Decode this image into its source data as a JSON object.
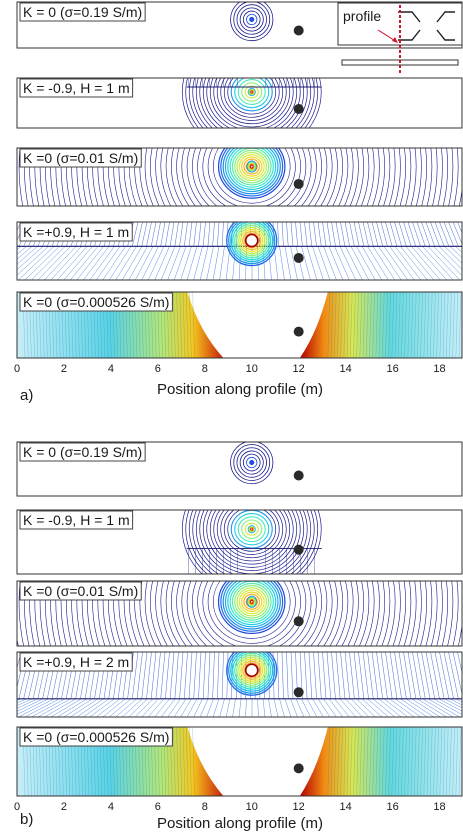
{
  "figure": {
    "xaxis_label": "Position along profile (m)",
    "x_ticks": [
      0,
      2,
      4,
      6,
      8,
      10,
      12,
      14,
      16,
      18
    ],
    "xlim": [
      0,
      19
    ],
    "inset_label": "profile",
    "colormap": [
      "#0a0a8c",
      "#1e50e6",
      "#1ea0f0",
      "#28e6dc",
      "#8cf07a",
      "#ebeb2d",
      "#f5a01e",
      "#e63214",
      "#a00000"
    ]
  },
  "groups": [
    {
      "tag": "a)",
      "panels": [
        {
          "label": "K = 0 (σ=0.19 S/m)",
          "kind": "small",
          "layer_m": null
        },
        {
          "label": "K = -0.9, H = 1 m",
          "kind": "negative",
          "layer_m": 1
        },
        {
          "label": "K =0 (σ=0.01 S/m)",
          "kind": "medium",
          "layer_m": null
        },
        {
          "label": "K =+0.9, H = 1 m",
          "kind": "positive",
          "layer_m": 1
        },
        {
          "label": "K =0 (σ=0.000526 S/m)",
          "kind": "wide",
          "layer_m": null
        }
      ]
    },
    {
      "tag": "b)",
      "panels": [
        {
          "label": "K = 0 (σ=0.19 S/m)",
          "kind": "small",
          "layer_m": null
        },
        {
          "label": "K = -0.9, H = 1 m",
          "kind": "negative",
          "layer_m": 1
        },
        {
          "label": "K =0 (σ=0.01 S/m)",
          "kind": "medium",
          "layer_m": null
        },
        {
          "label": "K =+0.9, H = 2 m",
          "kind": "positive",
          "layer_m": 2
        },
        {
          "label": "K =0 (σ=0.000526 S/m)",
          "kind": "wide",
          "layer_m": null
        }
      ]
    }
  ],
  "source_x_m": 10,
  "receiver_x_m": 12
}
